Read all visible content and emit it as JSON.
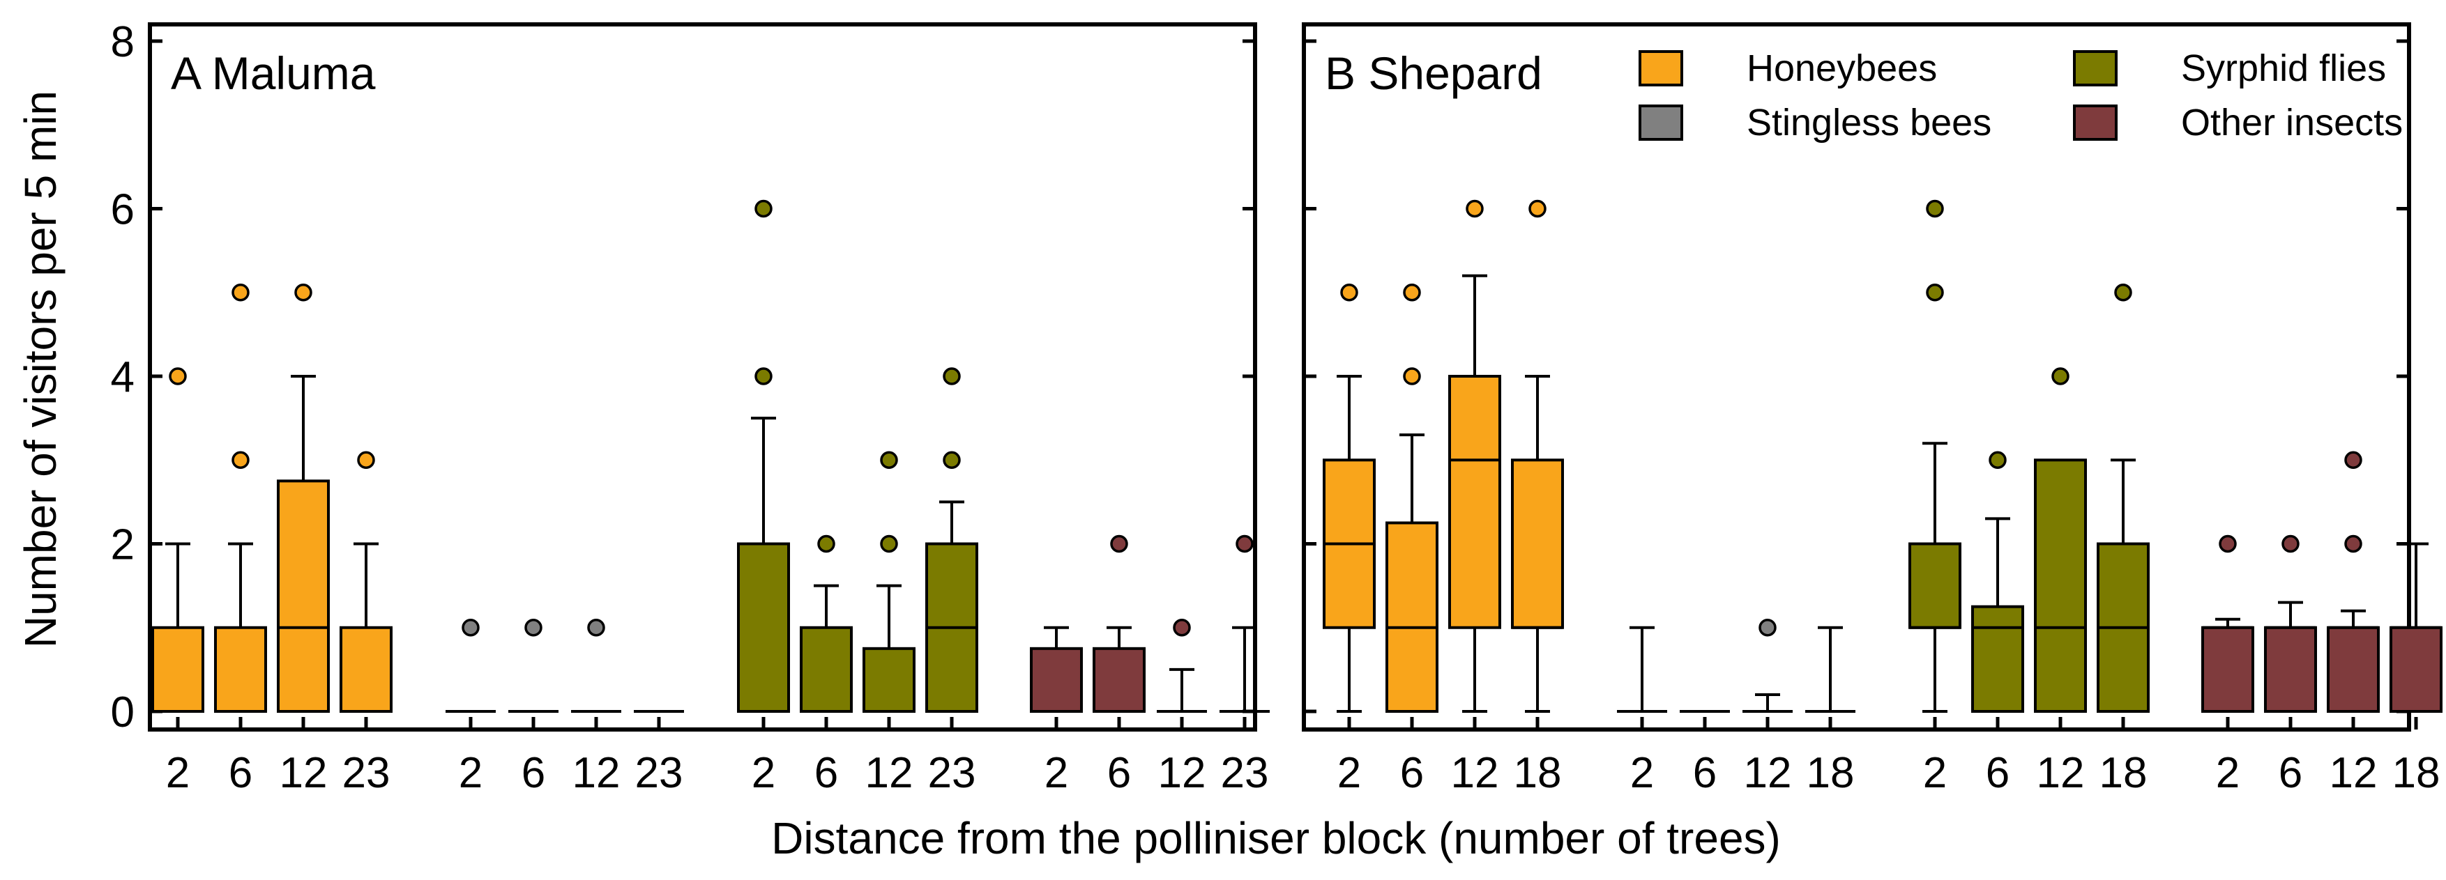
{
  "figure": {
    "ylabel": "Number of visitors per 5 min",
    "xlabel": "Distance from the polliniser block (number of trees)",
    "yticks": [
      0,
      2,
      4,
      6,
      8
    ],
    "ylim": [
      -0.25,
      8.25
    ]
  },
  "legend": {
    "entries": [
      {
        "key": "honeybees",
        "label": "Honeybees",
        "color": "#F9A51B"
      },
      {
        "key": "stingless",
        "label": "Stingless bees",
        "color": "#808080"
      },
      {
        "key": "syrphid",
        "label": "Syrphid flies",
        "color": "#7B7B00"
      },
      {
        "key": "other",
        "label": "Other insects",
        "color": "#7F3B3D"
      }
    ]
  },
  "chart_data": [
    {
      "type": "box",
      "title": "A Maluma",
      "xlabel": "Distance from the polliniser block (number of trees)",
      "ylabel": "Number of visitors per 5 min",
      "ylim": [
        -0.25,
        8.25
      ],
      "groups": [
        {
          "name": "Honeybees",
          "key": "honeybees",
          "color": "#F9A51B",
          "categories": [
            "2",
            "6",
            "12",
            "23"
          ],
          "boxes": [
            {
              "q1": 0,
              "median": 0,
              "q3": 1,
              "whisker_low": 0,
              "whisker_high": 2,
              "outliers": [
                4
              ]
            },
            {
              "q1": 0,
              "median": 0,
              "q3": 1,
              "whisker_low": 0,
              "whisker_high": 2,
              "outliers": [
                3,
                5
              ]
            },
            {
              "q1": 0,
              "median": 1,
              "q3": 2.75,
              "whisker_low": 0,
              "whisker_high": 4,
              "outliers": [
                5
              ]
            },
            {
              "q1": 0,
              "median": 0,
              "q3": 1,
              "whisker_low": 0,
              "whisker_high": 2,
              "outliers": [
                3
              ]
            }
          ]
        },
        {
          "name": "Stingless bees",
          "key": "stingless",
          "color": "#808080",
          "categories": [
            "2",
            "6",
            "12",
            "23"
          ],
          "boxes": [
            {
              "q1": 0,
              "median": 0,
              "q3": 0,
              "whisker_low": 0,
              "whisker_high": 0,
              "outliers": [
                1
              ]
            },
            {
              "q1": 0,
              "median": 0,
              "q3": 0,
              "whisker_low": 0,
              "whisker_high": 0,
              "outliers": [
                1
              ]
            },
            {
              "q1": 0,
              "median": 0,
              "q3": 0,
              "whisker_low": 0,
              "whisker_high": 0,
              "outliers": [
                1
              ]
            },
            {
              "q1": 0,
              "median": 0,
              "q3": 0,
              "whisker_low": 0,
              "whisker_high": 0,
              "outliers": []
            }
          ]
        },
        {
          "name": "Syrphid flies",
          "key": "syrphid",
          "color": "#7B7B00",
          "categories": [
            "2",
            "6",
            "12",
            "23"
          ],
          "boxes": [
            {
              "q1": 0,
              "median": 0,
              "q3": 2,
              "whisker_low": 0,
              "whisker_high": 3.5,
              "outliers": [
                4,
                6
              ]
            },
            {
              "q1": 0,
              "median": 0,
              "q3": 1,
              "whisker_low": 0,
              "whisker_high": 1.5,
              "outliers": [
                2
              ]
            },
            {
              "q1": 0,
              "median": 0,
              "q3": 0.75,
              "whisker_low": 0,
              "whisker_high": 1.5,
              "outliers": [
                2,
                3
              ]
            },
            {
              "q1": 0,
              "median": 1,
              "q3": 2,
              "whisker_low": 0,
              "whisker_high": 2.5,
              "outliers": [
                3,
                4
              ]
            }
          ]
        },
        {
          "name": "Other insects",
          "key": "other",
          "color": "#7F3B3D",
          "categories": [
            "2",
            "6",
            "12",
            "23"
          ],
          "boxes": [
            {
              "q1": 0,
              "median": 0,
              "q3": 0.75,
              "whisker_low": 0,
              "whisker_high": 1,
              "outliers": []
            },
            {
              "q1": 0,
              "median": 0,
              "q3": 0.75,
              "whisker_low": 0,
              "whisker_high": 1,
              "outliers": [
                2
              ]
            },
            {
              "q1": 0,
              "median": 0,
              "q3": 0,
              "whisker_low": 0,
              "whisker_high": 0.5,
              "outliers": [
                1
              ]
            },
            {
              "q1": 0,
              "median": 0,
              "q3": 0,
              "whisker_low": 0,
              "whisker_high": 1,
              "outliers": [
                2
              ]
            }
          ]
        }
      ]
    },
    {
      "type": "box",
      "title": "B Shepard",
      "xlabel": "Distance from the polliniser block (number of trees)",
      "ylabel": "Number of visitors per 5 min",
      "ylim": [
        -0.25,
        8.25
      ],
      "groups": [
        {
          "name": "Honeybees",
          "key": "honeybees",
          "color": "#F9A51B",
          "categories": [
            "2",
            "6",
            "12",
            "18"
          ],
          "boxes": [
            {
              "q1": 1,
              "median": 2,
              "q3": 3,
              "whisker_low": 0,
              "whisker_high": 4,
              "outliers": [
                5
              ]
            },
            {
              "q1": 0,
              "median": 1,
              "q3": 2.25,
              "whisker_low": 0,
              "whisker_high": 3.3,
              "outliers": [
                4,
                5
              ]
            },
            {
              "q1": 1,
              "median": 3,
              "q3": 4,
              "whisker_low": 0,
              "whisker_high": 5.2,
              "outliers": [
                6
              ]
            },
            {
              "q1": 1,
              "median": 1,
              "q3": 3,
              "whisker_low": 0,
              "whisker_high": 4,
              "outliers": [
                6
              ]
            }
          ]
        },
        {
          "name": "Stingless bees",
          "key": "stingless",
          "color": "#808080",
          "categories": [
            "2",
            "6",
            "12",
            "18"
          ],
          "boxes": [
            {
              "q1": 0,
              "median": 0,
              "q3": 0,
              "whisker_low": 0,
              "whisker_high": 1,
              "outliers": []
            },
            {
              "q1": 0,
              "median": 0,
              "q3": 0,
              "whisker_low": 0,
              "whisker_high": 0,
              "outliers": []
            },
            {
              "q1": 0,
              "median": 0,
              "q3": 0,
              "whisker_low": 0,
              "whisker_high": 0.2,
              "outliers": [
                1
              ]
            },
            {
              "q1": 0,
              "median": 0,
              "q3": 0,
              "whisker_low": 0,
              "whisker_high": 1,
              "outliers": []
            }
          ]
        },
        {
          "name": "Syrphid flies",
          "key": "syrphid",
          "color": "#7B7B00",
          "categories": [
            "2",
            "6",
            "12",
            "18"
          ],
          "boxes": [
            {
              "q1": 1,
              "median": 1,
              "q3": 2,
              "whisker_low": 0,
              "whisker_high": 3.2,
              "outliers": [
                5,
                6
              ]
            },
            {
              "q1": 0,
              "median": 1,
              "q3": 1.25,
              "whisker_low": 0,
              "whisker_high": 2.3,
              "outliers": [
                3
              ]
            },
            {
              "q1": 0,
              "median": 1,
              "q3": 3,
              "whisker_low": 0,
              "whisker_high": 3,
              "outliers": [
                4
              ]
            },
            {
              "q1": 0,
              "median": 1,
              "q3": 2,
              "whisker_low": 0,
              "whisker_high": 3,
              "outliers": [
                5
              ]
            }
          ]
        },
        {
          "name": "Other insects",
          "key": "other",
          "color": "#7F3B3D",
          "categories": [
            "2",
            "6",
            "12",
            "18"
          ],
          "boxes": [
            {
              "q1": 0,
              "median": 1,
              "q3": 1,
              "whisker_low": 0,
              "whisker_high": 1.1,
              "outliers": [
                2
              ]
            },
            {
              "q1": 0,
              "median": 1,
              "q3": 1,
              "whisker_low": 0,
              "whisker_high": 1.3,
              "outliers": [
                2
              ]
            },
            {
              "q1": 0,
              "median": 1,
              "q3": 1,
              "whisker_low": 0,
              "whisker_high": 1.2,
              "outliers": [
                2,
                3
              ]
            },
            {
              "q1": 0,
              "median": 1,
              "q3": 1,
              "whisker_low": 0,
              "whisker_high": 2,
              "outliers": []
            }
          ]
        }
      ]
    }
  ]
}
